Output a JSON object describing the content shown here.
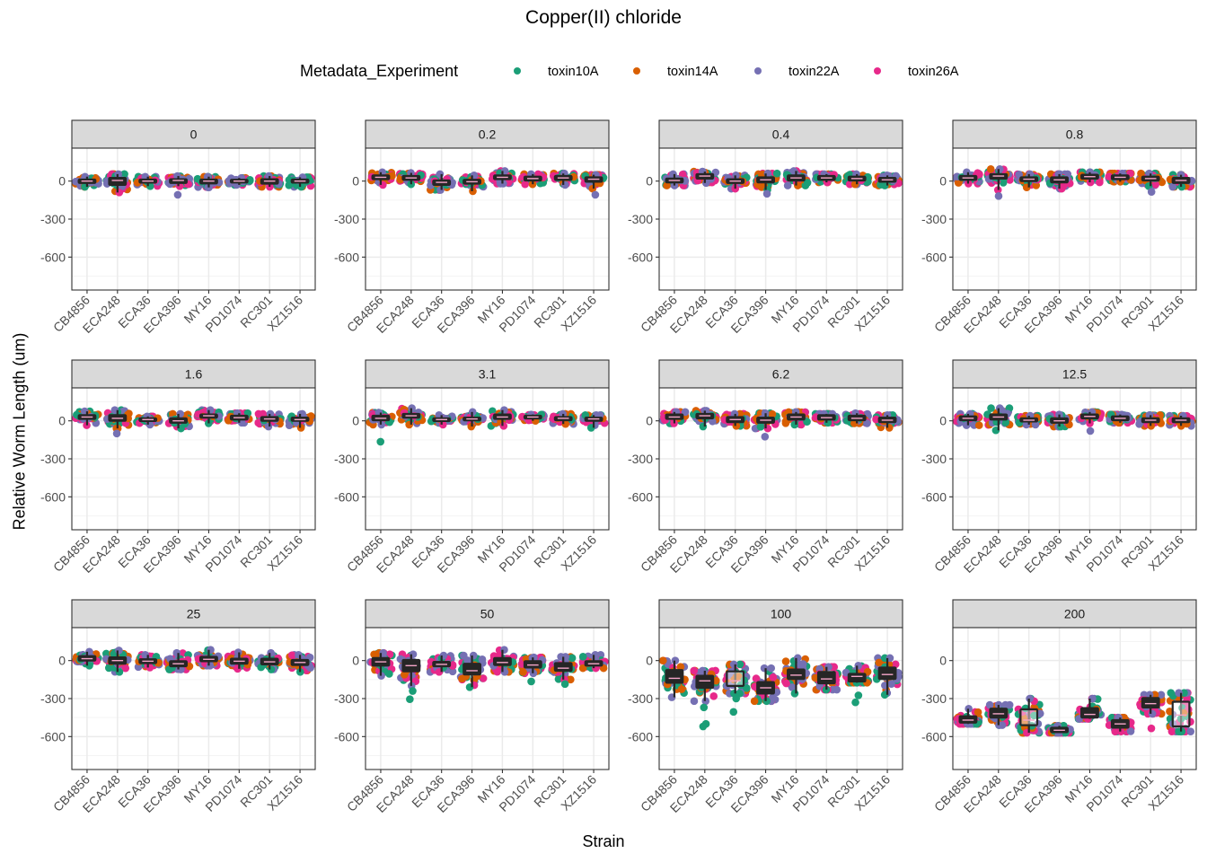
{
  "chart_data": {
    "type": "box+jitter (faceted)",
    "title": "Copper(II) chloride",
    "xlabel": "Strain",
    "ylabel": "Relative Worm Length (um)",
    "ylim": [
      -860,
      260
    ],
    "yticks": [
      0,
      -300,
      -600
    ],
    "ytick_labels": [
      "0",
      "-300",
      "-600"
    ],
    "grid": true,
    "legend": {
      "title": "Metadata_Experiment",
      "position": "top",
      "entries": [
        {
          "name": "toxin10A",
          "color": "#1B9E77"
        },
        {
          "name": "toxin14A",
          "color": "#D95F02"
        },
        {
          "name": "toxin22A",
          "color": "#7570B3"
        },
        {
          "name": "toxin26A",
          "color": "#E7298A"
        }
      ]
    },
    "categories": [
      "CB4856",
      "ECA248",
      "ECA36",
      "ECA396",
      "MY16",
      "PD1074",
      "RC301",
      "XZ1516"
    ],
    "facets": [
      {
        "label": "0",
        "medians": [
          0,
          5,
          0,
          5,
          0,
          0,
          0,
          0
        ],
        "q1": [
          -15,
          -30,
          -12,
          -15,
          -18,
          -10,
          -20,
          -12
        ],
        "q3": [
          12,
          25,
          12,
          15,
          12,
          10,
          15,
          12
        ],
        "wlo": [
          -45,
          -90,
          -40,
          -40,
          -50,
          -30,
          -45,
          -45
        ],
        "whi": [
          35,
          55,
          35,
          40,
          35,
          25,
          40,
          30
        ],
        "outliers": [
          [],
          [],
          [],
          [
            -108
          ],
          [],
          [],
          [],
          []
        ]
      },
      {
        "label": "0.2",
        "medians": [
          30,
          25,
          -10,
          -5,
          30,
          20,
          25,
          15
        ],
        "q1": [
          15,
          10,
          -30,
          -20,
          15,
          5,
          10,
          -5
        ],
        "q3": [
          45,
          40,
          5,
          10,
          45,
          35,
          40,
          30
        ],
        "wlo": [
          -30,
          -25,
          -70,
          -80,
          -20,
          -25,
          -30,
          -60
        ],
        "whi": [
          70,
          65,
          55,
          45,
          80,
          55,
          60,
          50
        ],
        "outliers": [
          [],
          [],
          [],
          [],
          [],
          [],
          [],
          [
            -108
          ]
        ]
      },
      {
        "label": "0.4",
        "medians": [
          5,
          40,
          0,
          10,
          25,
          25,
          20,
          10
        ],
        "q1": [
          -10,
          20,
          -15,
          -10,
          5,
          10,
          5,
          -5
        ],
        "q3": [
          20,
          55,
          15,
          30,
          45,
          40,
          35,
          25
        ],
        "wlo": [
          -35,
          -15,
          -60,
          -70,
          -35,
          -10,
          -25,
          -35
        ],
        "whi": [
          55,
          75,
          45,
          60,
          80,
          55,
          55,
          45
        ],
        "outliers": [
          [],
          [],
          [],
          [
            -100
          ],
          [],
          [],
          [],
          []
        ]
      },
      {
        "label": "0.8",
        "medians": [
          25,
          40,
          15,
          10,
          35,
          30,
          20,
          5
        ],
        "q1": [
          10,
          20,
          0,
          -10,
          20,
          15,
          5,
          -15
        ],
        "q3": [
          40,
          55,
          30,
          30,
          50,
          45,
          35,
          25
        ],
        "wlo": [
          -20,
          -70,
          -50,
          -60,
          -10,
          -5,
          -40,
          -45
        ],
        "whi": [
          70,
          95,
          55,
          55,
          70,
          60,
          60,
          50
        ],
        "outliers": [
          [],
          [
            -118
          ],
          [],
          [],
          [],
          [],
          [
            -85
          ],
          []
        ]
      },
      {
        "label": "1.6",
        "medians": [
          30,
          20,
          10,
          0,
          40,
          25,
          15,
          10
        ],
        "q1": [
          15,
          0,
          0,
          -15,
          25,
          10,
          0,
          0
        ],
        "q3": [
          45,
          45,
          20,
          20,
          50,
          40,
          30,
          25
        ],
        "wlo": [
          -35,
          -60,
          -30,
          -60,
          -20,
          -15,
          -45,
          -55
        ],
        "whi": [
          75,
          85,
          35,
          55,
          85,
          60,
          55,
          55
        ],
        "outliers": [
          [],
          [
            -100
          ],
          [],
          [],
          [],
          [],
          [],
          []
        ]
      },
      {
        "label": "3.1",
        "medians": [
          20,
          40,
          10,
          15,
          30,
          30,
          20,
          15
        ],
        "q1": [
          5,
          25,
          0,
          5,
          15,
          20,
          5,
          0
        ],
        "q3": [
          40,
          55,
          20,
          25,
          50,
          40,
          30,
          25
        ],
        "wlo": [
          -30,
          -30,
          -30,
          -45,
          -40,
          0,
          -25,
          -55
        ],
        "whi": [
          65,
          100,
          45,
          70,
          85,
          50,
          55,
          45
        ],
        "outliers": [
          [
            -165
          ],
          [],
          [],
          [],
          [],
          [],
          [],
          []
        ]
      },
      {
        "label": "6.2",
        "medians": [
          30,
          40,
          10,
          5,
          30,
          25,
          20,
          5
        ],
        "q1": [
          15,
          20,
          -10,
          -15,
          10,
          10,
          5,
          -10
        ],
        "q3": [
          50,
          55,
          30,
          25,
          50,
          45,
          40,
          25
        ],
        "wlo": [
          -20,
          -45,
          -40,
          -60,
          -30,
          -15,
          -20,
          -55
        ],
        "whi": [
          70,
          80,
          55,
          60,
          70,
          55,
          60,
          45
        ],
        "outliers": [
          [],
          [],
          [],
          [
            -125
          ],
          [],
          [],
          [],
          []
        ]
      },
      {
        "label": "12.5",
        "medians": [
          20,
          30,
          5,
          0,
          35,
          20,
          5,
          5
        ],
        "q1": [
          5,
          10,
          -5,
          -15,
          20,
          5,
          -10,
          -10
        ],
        "q3": [
          35,
          50,
          20,
          20,
          50,
          35,
          20,
          20
        ],
        "wlo": [
          -35,
          -75,
          -30,
          -45,
          -20,
          -15,
          -40,
          -40
        ],
        "whi": [
          55,
          100,
          40,
          50,
          70,
          50,
          45,
          40
        ],
        "outliers": [
          [],
          [],
          [],
          [],
          [
            -80
          ],
          [],
          [],
          []
        ]
      },
      {
        "label": "25",
        "medians": [
          15,
          0,
          -5,
          -25,
          10,
          -5,
          -10,
          -15
        ],
        "q1": [
          0,
          -25,
          -20,
          -45,
          -5,
          -25,
          -30,
          -35
        ],
        "q3": [
          35,
          25,
          10,
          -5,
          30,
          15,
          15,
          5
        ],
        "wlo": [
          -40,
          -90,
          -55,
          -70,
          -40,
          -65,
          -70,
          -90
        ],
        "whi": [
          70,
          80,
          45,
          60,
          85,
          65,
          60,
          45
        ],
        "outliers": [
          [],
          [],
          [],
          [],
          [],
          [],
          [],
          []
        ]
      },
      {
        "label": "50",
        "medians": [
          -10,
          -40,
          -30,
          -80,
          -15,
          -35,
          -60,
          -25
        ],
        "q1": [
          -40,
          -85,
          -45,
          -110,
          -35,
          -55,
          -80,
          -40
        ],
        "q3": [
          20,
          5,
          -10,
          -25,
          20,
          -5,
          -20,
          -5
        ],
        "wlo": [
          -120,
          -200,
          -90,
          -210,
          -90,
          -100,
          -150,
          -60
        ],
        "whi": [
          60,
          50,
          40,
          40,
          85,
          25,
          30,
          45
        ],
        "outliers": [
          [],
          [
            -240,
            -305
          ],
          [],
          [],
          [],
          [
            -165
          ],
          [
            -185
          ],
          []
        ]
      },
      {
        "label": "100",
        "medians": [
          -140,
          -160,
          -160,
          -215,
          -115,
          -145,
          -125,
          -110
        ],
        "q1": [
          -175,
          -215,
          -200,
          -260,
          -145,
          -180,
          -165,
          -145
        ],
        "q3": [
          -75,
          -120,
          -85,
          -170,
          -70,
          -90,
          -105,
          -55
        ],
        "wlo": [
          -290,
          -320,
          -260,
          -320,
          -260,
          -230,
          -175,
          -270
        ],
        "whi": [
          0,
          -80,
          -30,
          -60,
          20,
          -50,
          -40,
          20
        ],
        "outliers": [
          [],
          [
            -370,
            -500,
            -520
          ],
          [
            -300,
            -405
          ],
          [],
          [],
          [],
          [
            -275,
            -330
          ],
          []
        ]
      },
      {
        "label": "200",
        "medians": [
          -470,
          -420,
          -470,
          -550,
          -425,
          -500,
          -340,
          -430
        ],
        "q1": [
          -490,
          -450,
          -510,
          -565,
          -450,
          -530,
          -370,
          -520
        ],
        "q3": [
          -440,
          -380,
          -385,
          -530,
          -375,
          -470,
          -295,
          -325
        ],
        "wlo": [
          -500,
          -510,
          -570,
          -570,
          -460,
          -560,
          -420,
          -560
        ],
        "whi": [
          -380,
          -350,
          -300,
          -515,
          -300,
          -450,
          -270,
          -255
        ],
        "outliers": [
          [],
          [],
          [],
          [],
          [],
          [],
          [
            -535
          ],
          []
        ]
      }
    ]
  }
}
